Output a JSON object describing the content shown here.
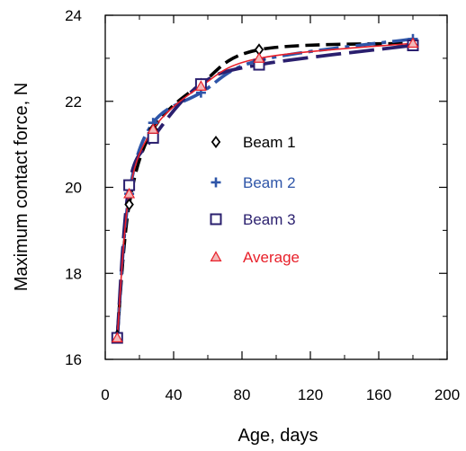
{
  "chart_data": {
    "type": "line",
    "title": "",
    "xlabel": "Age, days",
    "ylabel": "Maximum contact force, N",
    "xlim": [
      0,
      200
    ],
    "ylim": [
      16,
      24
    ],
    "xticks": [
      0,
      40,
      80,
      120,
      160,
      200
    ],
    "yticks": [
      16,
      18,
      20,
      22,
      24
    ],
    "x_tick_labels": [
      "0",
      "40",
      "80",
      "120",
      "160",
      "200"
    ],
    "y_tick_labels": [
      "16",
      "18",
      "20",
      "22",
      "24"
    ],
    "grid": false,
    "legend_position": "center-right",
    "series": [
      {
        "name": "Beam 1",
        "marker": "diamond",
        "color": "#000000",
        "line_style": "dashed",
        "x": [
          7,
          14,
          28,
          56,
          90,
          180
        ],
        "y": [
          16.55,
          19.6,
          21.35,
          22.4,
          23.2,
          23.35
        ]
      },
      {
        "name": "Beam 2",
        "marker": "plus",
        "color": "#2e55a8",
        "line_style": "dash-dot",
        "x": [
          7,
          14,
          28,
          56,
          90,
          180
        ],
        "y": [
          16.5,
          19.85,
          21.5,
          22.2,
          22.95,
          23.45
        ]
      },
      {
        "name": "Beam 3",
        "marker": "square",
        "color": "#2a1f6e",
        "line_style": "long-dash",
        "x": [
          7,
          14,
          28,
          56,
          90,
          180
        ],
        "y": [
          16.5,
          20.05,
          21.15,
          22.4,
          22.85,
          23.3
        ]
      },
      {
        "name": "Average",
        "marker": "triangle",
        "color": "#e8202a",
        "line_style": "solid",
        "x": [
          7,
          14,
          28,
          56,
          90,
          180
        ],
        "y": [
          16.5,
          19.85,
          21.35,
          22.35,
          23.0,
          23.35
        ]
      }
    ]
  }
}
